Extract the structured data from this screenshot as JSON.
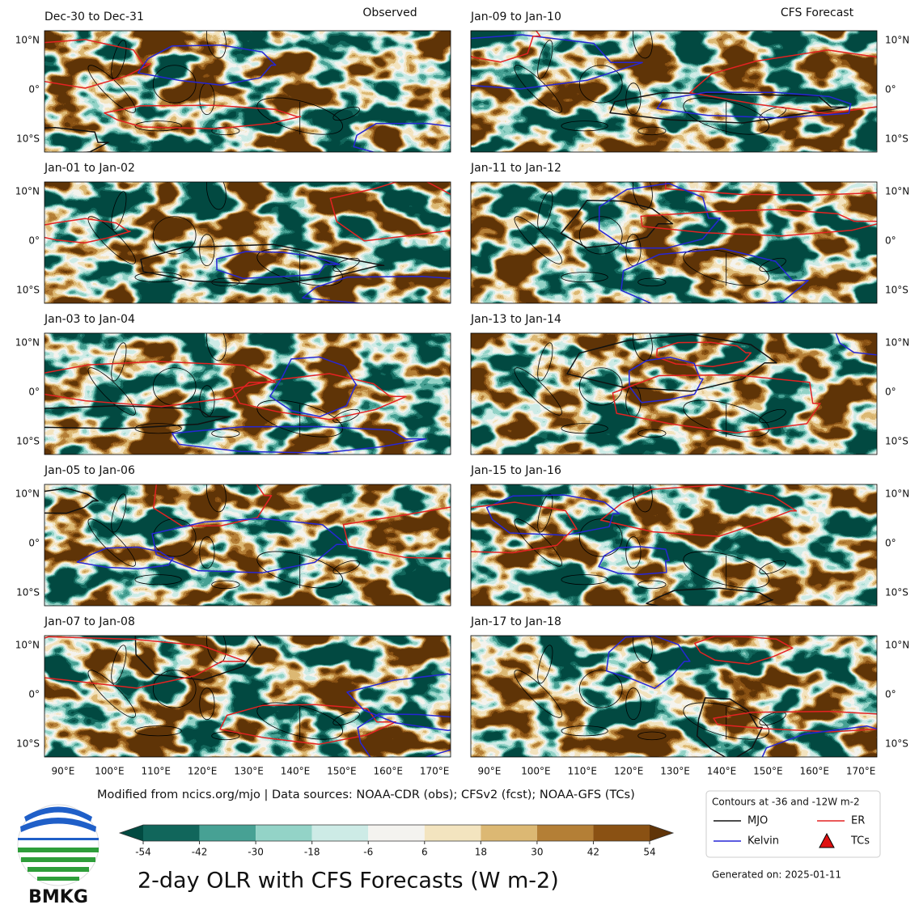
{
  "header": {
    "observed": "Observed",
    "forecast": "CFS Forecast"
  },
  "panels": [
    {
      "title": "Dec-30 to Dec-31"
    },
    {
      "title": "Jan-01 to Jan-02"
    },
    {
      "title": "Jan-03 to Jan-04"
    },
    {
      "title": "Jan-05 to Jan-06"
    },
    {
      "title": "Jan-07 to Jan-08"
    },
    {
      "title": "Jan-09 to Jan-10"
    },
    {
      "title": "Jan-11 to Jan-12"
    },
    {
      "title": "Jan-13 to Jan-14"
    },
    {
      "title": "Jan-15 to Jan-16"
    },
    {
      "title": "Jan-17 to Jan-18"
    }
  ],
  "lat_labels": [
    "10°N",
    "0°",
    "10°S"
  ],
  "lon_labels": [
    "90°E",
    "100°E",
    "110°E",
    "120°E",
    "130°E",
    "140°E",
    "150°E",
    "160°E",
    "170°E"
  ],
  "source": "Modified from ncics.org/mjo | Data sources: NOAA-CDR (obs); CFSv2 (fcst); NOAA-GFS (TCs)",
  "colorbar": {
    "title": "2-day OLR with CFS Forecasts (W m-2)",
    "ticks": [
      -54,
      -42,
      -30,
      -18,
      -6,
      6,
      18,
      30,
      42,
      54
    ],
    "colors": [
      "#11665b",
      "#47a194",
      "#93d3c7",
      "#cdebe6",
      "#f4f3ef",
      "#f3e4bf",
      "#dcb873",
      "#b47f36",
      "#8a5113"
    ],
    "extend_colors": [
      "#024a41",
      "#603408"
    ]
  },
  "legend": {
    "title": "Contours at -36 and -12W m-2",
    "items": [
      {
        "name": "MJO",
        "color": "#111111"
      },
      {
        "name": "ER",
        "color": "#e42222"
      },
      {
        "name": "Kelvin",
        "color": "#2626d6"
      },
      {
        "name": "TCs",
        "color": "#e01010"
      }
    ]
  },
  "generated": "Generated on: 2025-01-11",
  "logo": "BMKG"
}
